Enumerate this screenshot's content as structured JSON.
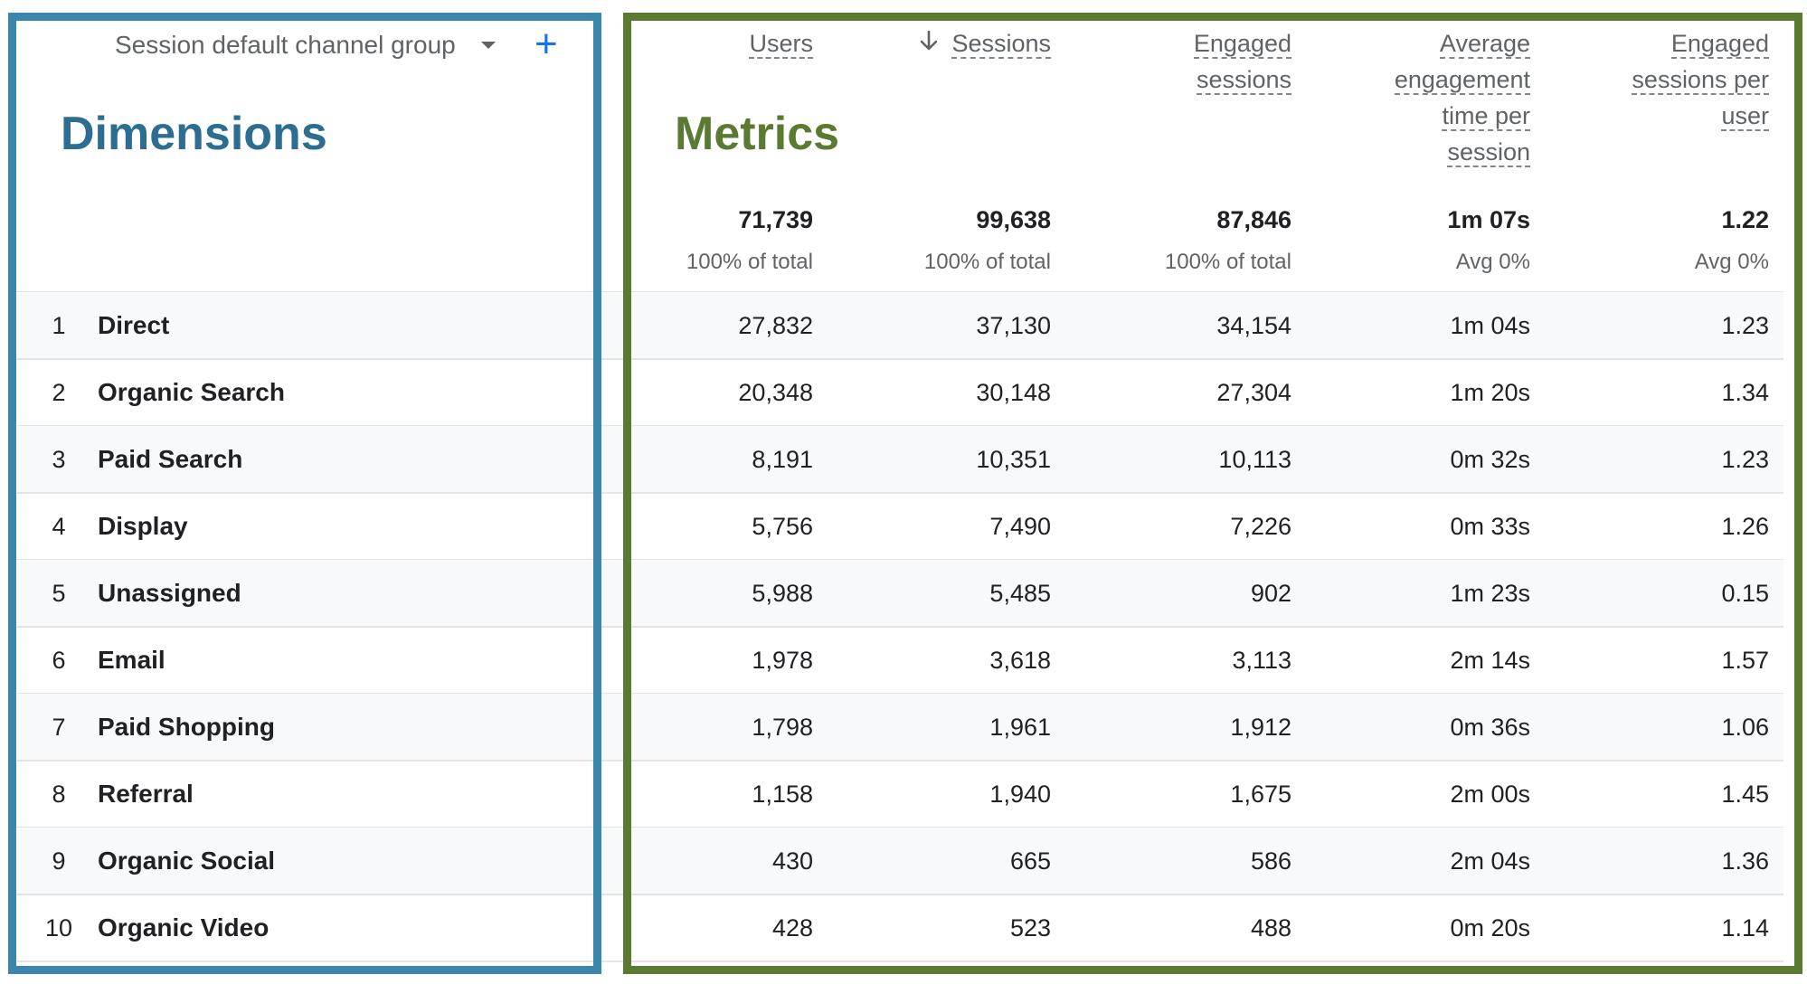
{
  "labels": {
    "dimensions": "Dimensions",
    "metrics": "Metrics"
  },
  "dimension_header": "Session default channel group",
  "metrics_headers": {
    "users": "Users",
    "sessions": "Sessions",
    "engaged_sessions_1": "Engaged",
    "engaged_sessions_2": "sessions",
    "avg_eng_1": "Average",
    "avg_eng_2": "engagement",
    "avg_eng_3": "time per",
    "avg_eng_4": "session",
    "eng_per_user_1": "Engaged",
    "eng_per_user_2": "sessions per",
    "eng_per_user_3": "user"
  },
  "totals": {
    "users": "71,739",
    "users_sub": "100% of total",
    "sessions": "99,638",
    "sessions_sub": "100% of total",
    "engaged": "87,846",
    "engaged_sub": "100% of total",
    "avg": "1m 07s",
    "avg_sub": "Avg 0%",
    "per_user": "1.22",
    "per_user_sub": "Avg 0%"
  },
  "rows": [
    {
      "num": "1",
      "name": "Direct",
      "users": "27,832",
      "sessions": "37,130",
      "engaged": "34,154",
      "avg": "1m 04s",
      "per_user": "1.23"
    },
    {
      "num": "2",
      "name": "Organic Search",
      "users": "20,348",
      "sessions": "30,148",
      "engaged": "27,304",
      "avg": "1m 20s",
      "per_user": "1.34"
    },
    {
      "num": "3",
      "name": "Paid Search",
      "users": "8,191",
      "sessions": "10,351",
      "engaged": "10,113",
      "avg": "0m 32s",
      "per_user": "1.23"
    },
    {
      "num": "4",
      "name": "Display",
      "users": "5,756",
      "sessions": "7,490",
      "engaged": "7,226",
      "avg": "0m 33s",
      "per_user": "1.26"
    },
    {
      "num": "5",
      "name": "Unassigned",
      "users": "5,988",
      "sessions": "5,485",
      "engaged": "902",
      "avg": "1m 23s",
      "per_user": "0.15"
    },
    {
      "num": "6",
      "name": "Email",
      "users": "1,978",
      "sessions": "3,618",
      "engaged": "3,113",
      "avg": "2m 14s",
      "per_user": "1.57"
    },
    {
      "num": "7",
      "name": "Paid Shopping",
      "users": "1,798",
      "sessions": "1,961",
      "engaged": "1,912",
      "avg": "0m 36s",
      "per_user": "1.06"
    },
    {
      "num": "8",
      "name": "Referral",
      "users": "1,158",
      "sessions": "1,940",
      "engaged": "1,675",
      "avg": "2m 00s",
      "per_user": "1.45"
    },
    {
      "num": "9",
      "name": "Organic Social",
      "users": "430",
      "sessions": "665",
      "engaged": "586",
      "avg": "2m 04s",
      "per_user": "1.36"
    },
    {
      "num": "10",
      "name": "Organic Video",
      "users": "428",
      "sessions": "523",
      "engaged": "488",
      "avg": "0m 20s",
      "per_user": "1.14"
    }
  ],
  "colors": {
    "dimensions_frame": "#3b86ad",
    "metrics_frame": "#5a7a32",
    "add_icon": "#1a73e8"
  },
  "icons": {
    "dropdown": "caret-down-icon",
    "add": "plus-icon",
    "sort": "arrow-down-icon"
  }
}
